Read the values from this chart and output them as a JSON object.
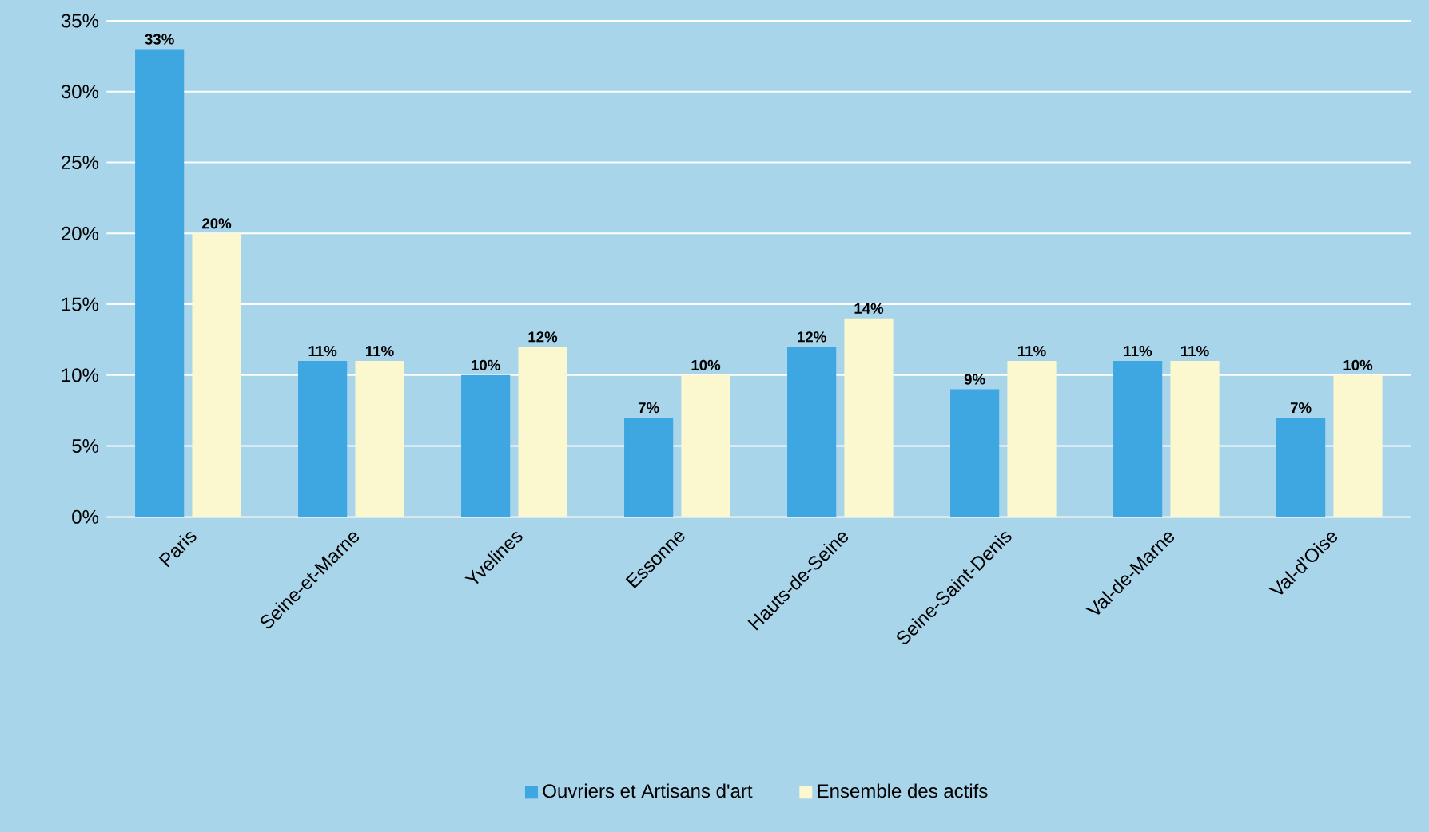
{
  "chart_data": {
    "type": "bar",
    "categories": [
      "Paris",
      "Seine-et-Marne",
      "Yvelines",
      "Essonne",
      "Hauts-de-Seine",
      "Seine-Saint-Denis",
      "Val-de-Marne",
      "Val-d'Oise"
    ],
    "series": [
      {
        "name": "Ouvriers et Artisans d'art",
        "color": "#3ea6e0",
        "values": [
          33,
          11,
          10,
          7,
          12,
          9,
          11,
          7
        ],
        "value_labels": [
          "33%",
          "11%",
          "10%",
          "7%",
          "12%",
          "9%",
          "11%",
          "7%"
        ]
      },
      {
        "name": "Ensemble des actifs",
        "color": "#fbf8cf",
        "values": [
          20,
          11,
          12,
          10,
          14,
          11,
          11,
          10
        ],
        "value_labels": [
          "20%",
          "11%",
          "12%",
          "10%",
          "14%",
          "11%",
          "11%",
          "10%"
        ]
      }
    ],
    "ylim": [
      0,
      35
    ],
    "yticks": [
      {
        "value": 0,
        "label": "0%"
      },
      {
        "value": 5,
        "label": "5%"
      },
      {
        "value": 10,
        "label": "10%"
      },
      {
        "value": 15,
        "label": "15%"
      },
      {
        "value": 20,
        "label": "20%"
      },
      {
        "value": 25,
        "label": "25%"
      },
      {
        "value": 30,
        "label": "30%"
      },
      {
        "value": 35,
        "label": "35%"
      }
    ],
    "grid": "y",
    "legend": "bottom"
  }
}
